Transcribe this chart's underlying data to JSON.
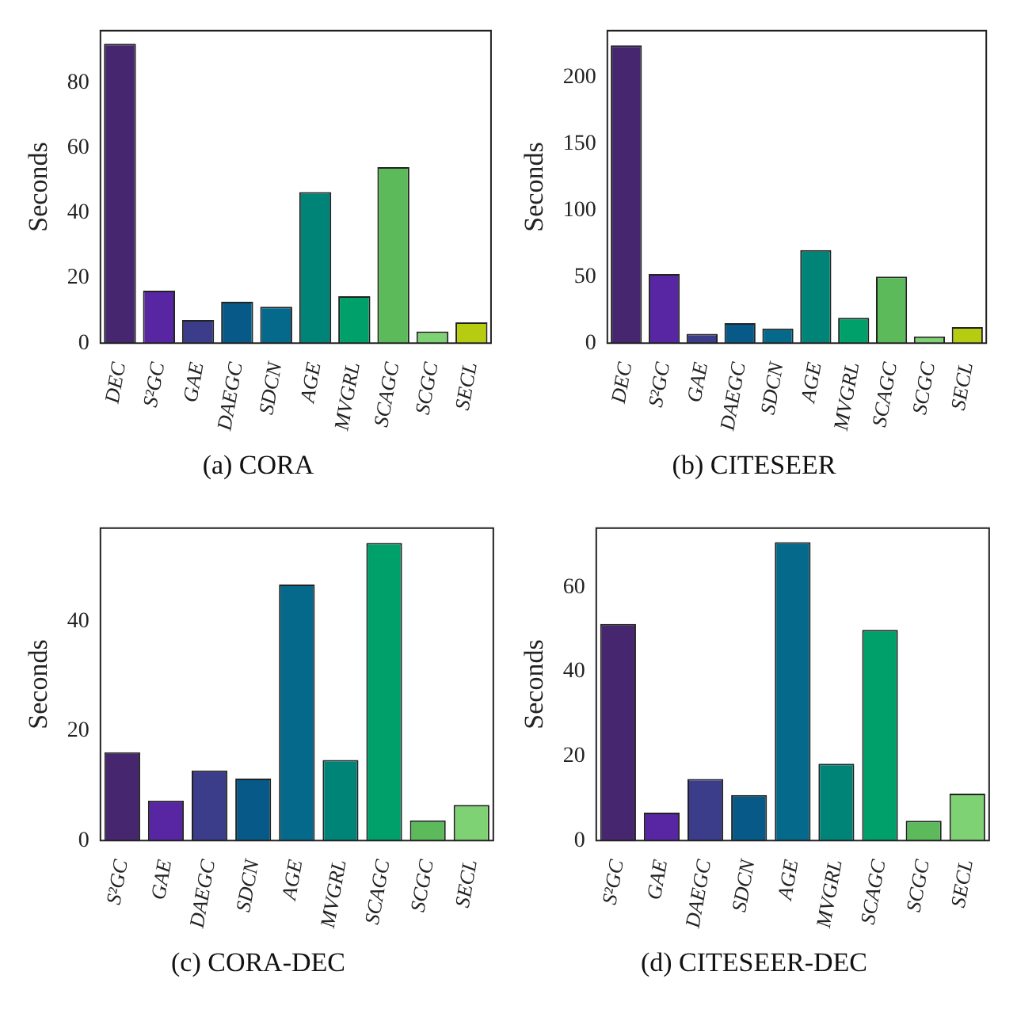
{
  "chart_data": [
    {
      "type": "bar",
      "title": "(a) CORA",
      "ylabel": "Seconds",
      "categories": [
        "DEC",
        "S²GC",
        "GAE",
        "DAEGC",
        "SDCN",
        "AGE",
        "MVGRL",
        "SCAGC",
        "SCGC",
        "SECL"
      ],
      "values": [
        92,
        16.1,
        7.1,
        12.7,
        11.2,
        46.4,
        14.4,
        54.1,
        3.6,
        6.4
      ],
      "colors": [
        "#46276f",
        "#5826a3",
        "#3b3d8a",
        "#075a88",
        "#05698c",
        "#008478",
        "#00a06a",
        "#5cba5a",
        "#7fd274",
        "#b5cc10"
      ],
      "ylim": [
        0,
        96
      ],
      "yticks": [
        0,
        20,
        40,
        60,
        80
      ]
    },
    {
      "type": "bar",
      "title": "(b) CITESEER",
      "ylabel": "Seconds",
      "categories": [
        "DEC",
        "S²GC",
        "GAE",
        "DAEGC",
        "SDCN",
        "AGE",
        "MVGRL",
        "SCAGC",
        "SCGC",
        "SECL"
      ],
      "values": [
        224,
        52,
        7,
        15,
        11,
        70,
        19,
        50,
        5,
        12
      ],
      "colors": [
        "#46276f",
        "#5826a3",
        "#3b3d8a",
        "#075a88",
        "#05698c",
        "#008478",
        "#00a06a",
        "#5cba5a",
        "#7fd274",
        "#b5cc10"
      ],
      "ylim": [
        0,
        235
      ],
      "yticks": [
        0,
        50,
        100,
        150,
        200
      ]
    },
    {
      "type": "bar",
      "title": "(c) CORA-DEC",
      "ylabel": "Seconds",
      "categories": [
        "S²GC",
        "GAE",
        "DAEGC",
        "SDCN",
        "AGE",
        "MVGRL",
        "SCAGC",
        "SCGC",
        "SECL"
      ],
      "values": [
        16.1,
        7.3,
        12.8,
        11.3,
        46.7,
        14.7,
        54.3,
        3.7,
        6.5
      ],
      "colors": [
        "#46276f",
        "#5826a3",
        "#3b3d8a",
        "#075a88",
        "#05698c",
        "#008478",
        "#00a06a",
        "#5cba5a",
        "#7fd274"
      ],
      "ylim": [
        0,
        57
      ],
      "yticks": [
        0,
        20,
        40
      ]
    },
    {
      "type": "bar",
      "title": "(d) CITESEER-DEC",
      "ylabel": "Seconds",
      "categories": [
        "S²GC",
        "GAE",
        "DAEGC",
        "SDCN",
        "AGE",
        "MVGRL",
        "SCAGC",
        "SCGC",
        "SECL"
      ],
      "values": [
        51.3,
        6.6,
        14.6,
        10.8,
        70.7,
        18.2,
        49.9,
        4.7,
        11.1
      ],
      "colors": [
        "#46276f",
        "#5826a3",
        "#3b3d8a",
        "#075a88",
        "#05698c",
        "#008478",
        "#00a06a",
        "#5cba5a",
        "#7fd274"
      ],
      "ylim": [
        0,
        74
      ],
      "yticks": [
        0,
        20,
        40,
        60
      ]
    }
  ]
}
